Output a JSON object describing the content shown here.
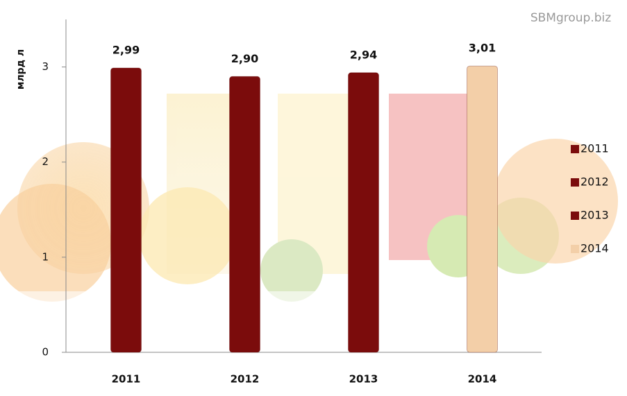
{
  "chart_data": {
    "type": "bar",
    "watermark": "SBMgroup.biz",
    "y_label": "млрд л",
    "categories": [
      "2011",
      "2012",
      "2013",
      "2014"
    ],
    "values": [
      2.99,
      2.9,
      2.94,
      3.01
    ],
    "value_labels": [
      "2,99",
      "2,90",
      "2,94",
      "3,01"
    ],
    "colors": [
      "#7b0c0c",
      "#7b0c0c",
      "#7b0c0c",
      "#f3cfa8"
    ],
    "ylim": [
      0,
      3.5
    ],
    "yticks": [
      0,
      1,
      2,
      3
    ],
    "grid": false,
    "legend": "right"
  }
}
